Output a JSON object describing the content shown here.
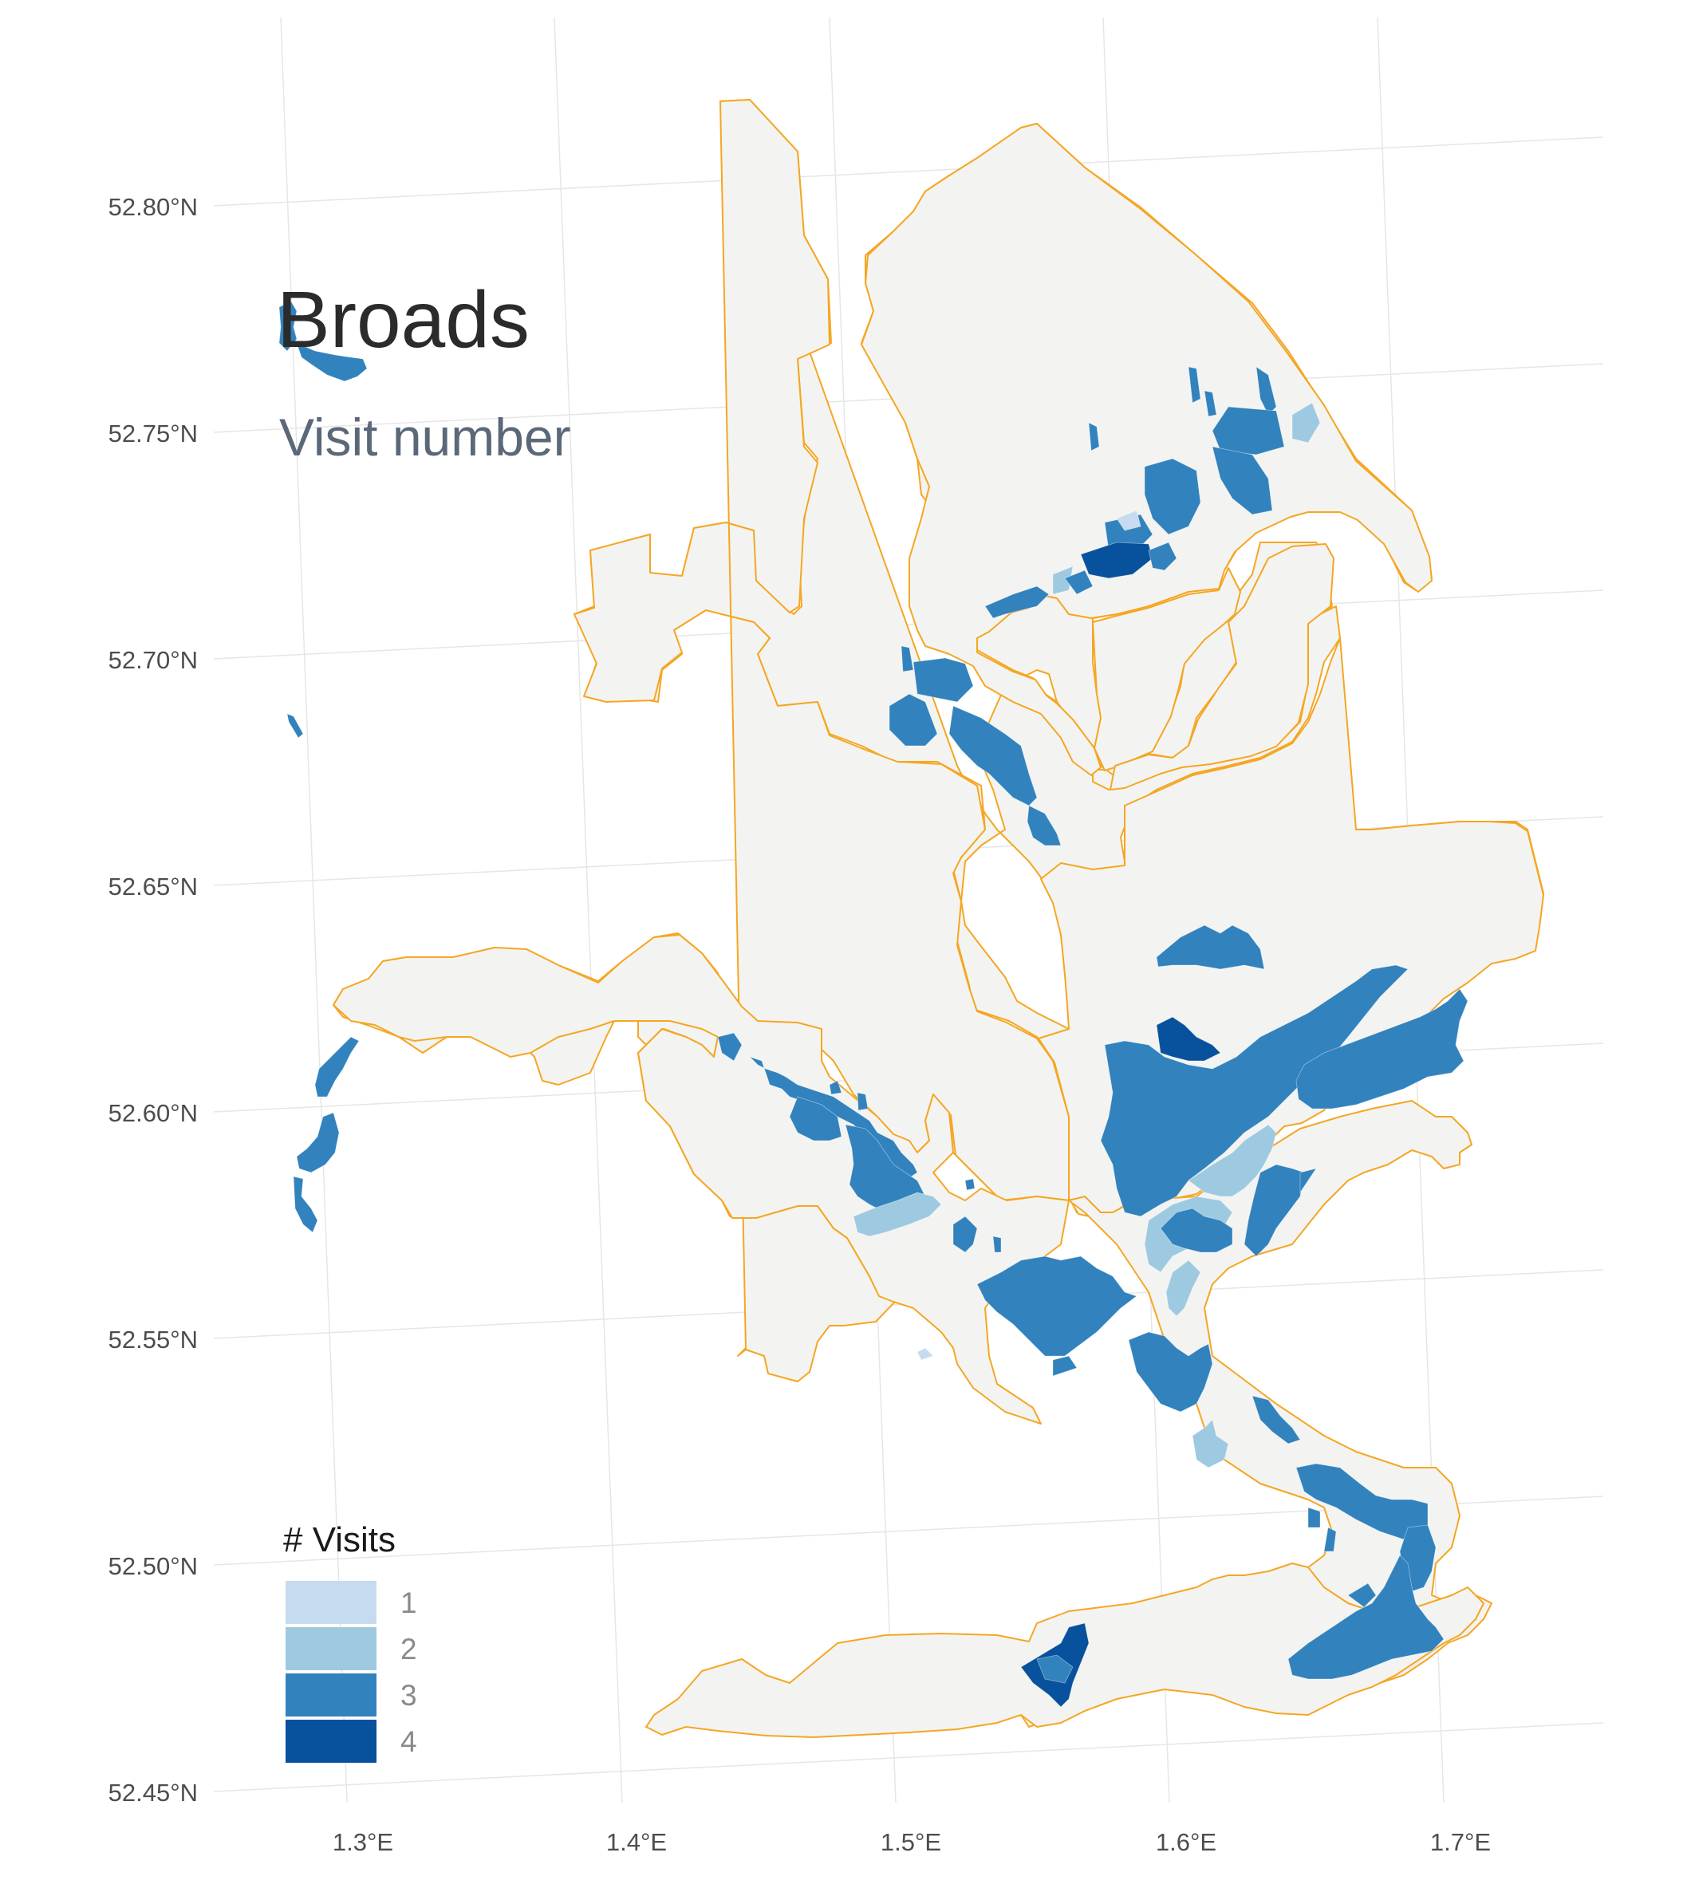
{
  "title": "Broads",
  "subtitle": "Visit number",
  "axes": {
    "x_ticks": [
      "1.3°E",
      "1.4°E",
      "1.5°E",
      "1.6°E",
      "1.7°E"
    ],
    "y_ticks": [
      "52.80°N",
      "52.75°N",
      "52.70°N",
      "52.65°N",
      "52.60°N",
      "52.55°N",
      "52.50°N",
      "52.45°N"
    ]
  },
  "legend": {
    "title": "# Visits",
    "items": [
      {
        "label": "1",
        "color": "#c6dbef"
      },
      {
        "label": "2",
        "color": "#9ecae1"
      },
      {
        "label": "3",
        "color": "#3182bd"
      },
      {
        "label": "4",
        "color": "#08519c"
      }
    ]
  },
  "colors": {
    "boundary_stroke": "#f5a623",
    "boundary_fill": "#f3f4f1",
    "grid": "#e6e6e6"
  }
}
